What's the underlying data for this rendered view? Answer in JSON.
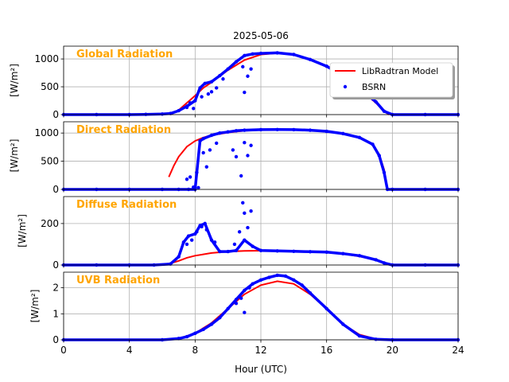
{
  "figure": {
    "title": "2025-05-06",
    "xlabel": "Hour (UTC)",
    "legend": {
      "model_label": "LibRadtran Model",
      "obs_label": "BSRN",
      "placement": "upper-right of first panel"
    },
    "colors": {
      "model": "#ff0000",
      "obs": "#0000ff",
      "panel_title": "#ffa500",
      "grid": "#b0b0b0"
    }
  },
  "chart_data": [
    {
      "type": "line",
      "title": "Global Radiation",
      "ylabel": "[W/m²]",
      "xlim": [
        0,
        24
      ],
      "ylim": [
        0,
        1230
      ],
      "yticks": [
        0,
        500,
        1000
      ],
      "xticks": [
        0,
        4,
        8,
        12,
        16,
        20,
        24
      ],
      "grid": true,
      "series": [
        {
          "name": "LibRadtran Model",
          "style": "line",
          "x": [
            6.5,
            7.0,
            7.5,
            8.0,
            8.5,
            9.0,
            10.0,
            11.0,
            12.0,
            13.0,
            14.0,
            15.0,
            16.0,
            17.0,
            18.0,
            19.0,
            19.5,
            19.8
          ],
          "y": [
            0,
            80,
            210,
            340,
            480,
            580,
            800,
            980,
            1080,
            1105,
            1080,
            990,
            860,
            690,
            460,
            210,
            60,
            0
          ]
        },
        {
          "name": "BSRN",
          "style": "points",
          "x": [
            0,
            2,
            4,
            5,
            6,
            6.5,
            7.0,
            7.5,
            8.0,
            8.3,
            8.6,
            9.0,
            9.5,
            10.0,
            10.5,
            11.0,
            11.5,
            12.0,
            13.0,
            14.0,
            15.0,
            16.0,
            17.0,
            18.0,
            18.5,
            19.0,
            19.5,
            20.0,
            22.0,
            24.0
          ],
          "y": [
            0,
            0,
            0,
            5,
            10,
            20,
            70,
            150,
            250,
            480,
            560,
            590,
            700,
            820,
            950,
            1060,
            1090,
            1100,
            1110,
            1080,
            990,
            870,
            700,
            470,
            350,
            230,
            60,
            0,
            0,
            0
          ]
        },
        {
          "name": "BSRN",
          "style": "points",
          "x": [
            7.5,
            7.7,
            7.9,
            8.4,
            8.8,
            9.0,
            9.3,
            9.7,
            10.9,
            11.0,
            11.2,
            11.4
          ],
          "y": [
            130,
            210,
            110,
            320,
            370,
            410,
            480,
            640,
            860,
            400,
            690,
            820
          ]
        }
      ]
    },
    {
      "type": "line",
      "title": "Direct Radiation",
      "ylabel": "[W/m²]",
      "xlim": [
        0,
        24
      ],
      "ylim": [
        0,
        1200
      ],
      "yticks": [
        0,
        500,
        1000
      ],
      "xticks": [
        0,
        4,
        8,
        12,
        16,
        20,
        24
      ],
      "grid": true,
      "series": [
        {
          "name": "LibRadtran Model",
          "style": "line",
          "x": [
            6.4,
            6.7,
            7.0,
            7.5,
            8.0,
            8.5,
            9.0,
            10.0,
            11.0,
            12.0,
            13.0,
            14.0,
            15.0,
            16.0,
            17.0,
            18.0,
            18.8,
            19.2,
            19.5,
            19.7
          ],
          "y": [
            220,
            420,
            580,
            760,
            860,
            920,
            960,
            1010,
            1040,
            1055,
            1060,
            1058,
            1050,
            1030,
            990,
            920,
            800,
            620,
            350,
            0
          ]
        },
        {
          "name": "BSRN",
          "style": "points",
          "x": [
            0,
            2,
            4,
            6,
            7.0,
            7.6,
            8.0,
            8.3,
            8.5,
            9.0,
            9.5,
            10.0,
            10.5,
            11.0,
            12.0,
            13.0,
            14.0,
            15.0,
            16.0,
            17.0,
            18.0,
            18.8,
            19.2,
            19.5,
            19.7,
            20.0,
            22.0,
            24.0
          ],
          "y": [
            0,
            0,
            0,
            0,
            0,
            0,
            0,
            860,
            900,
            960,
            1000,
            1020,
            1040,
            1050,
            1060,
            1062,
            1060,
            1050,
            1030,
            990,
            920,
            800,
            600,
            300,
            0,
            0,
            0,
            0
          ]
        },
        {
          "name": "BSRN",
          "style": "points",
          "x": [
            7.5,
            7.7,
            7.9,
            8.1,
            8.2,
            8.5,
            8.7,
            8.9,
            9.3,
            10.3,
            10.5,
            10.8,
            11.0,
            11.2,
            11.4
          ],
          "y": [
            180,
            220,
            40,
            300,
            30,
            650,
            400,
            700,
            820,
            700,
            580,
            240,
            830,
            600,
            780
          ]
        }
      ]
    },
    {
      "type": "line",
      "title": "Diffuse Radiation",
      "ylabel": "[W/m²]",
      "xlim": [
        0,
        24
      ],
      "ylim": [
        0,
        330
      ],
      "yticks": [
        0,
        200
      ],
      "xticks": [
        0,
        4,
        8,
        12,
        16,
        20,
        24
      ],
      "grid": true,
      "series": [
        {
          "name": "LibRadtran Model",
          "style": "line",
          "x": [
            0,
            5,
            6,
            6.5,
            7.0,
            7.5,
            8.0,
            9.0,
            10.0,
            11.0,
            12.0,
            13.0,
            14.0,
            15.0,
            16.0,
            17.0,
            18.0,
            19.0,
            19.5,
            20.0,
            24.0
          ],
          "y": [
            0,
            0,
            2,
            8,
            20,
            35,
            45,
            58,
            65,
            68,
            69,
            69,
            68,
            66,
            62,
            54,
            42,
            24,
            10,
            0,
            0
          ]
        },
        {
          "name": "BSRN",
          "style": "points",
          "x": [
            0,
            2,
            4,
            5.5,
            6.5,
            7.0,
            7.3,
            7.6,
            8.0,
            8.3,
            8.6,
            9.0,
            9.5,
            10.0,
            10.5,
            11.0,
            11.5,
            12.0,
            13.0,
            14.0,
            15.0,
            16.0,
            17.0,
            18.0,
            19.0,
            19.5,
            20.0,
            22.0,
            24.0
          ],
          "y": [
            0,
            0,
            0,
            0,
            5,
            40,
            110,
            140,
            150,
            190,
            200,
            120,
            65,
            65,
            70,
            120,
            90,
            70,
            68,
            66,
            64,
            62,
            55,
            45,
            25,
            10,
            0,
            0,
            0
          ]
        },
        {
          "name": "BSRN",
          "style": "points",
          "x": [
            7.5,
            7.8,
            8.1,
            8.4,
            8.7,
            9.2,
            10.4,
            10.7,
            10.9,
            11.0,
            11.2,
            11.4
          ],
          "y": [
            100,
            120,
            160,
            185,
            170,
            110,
            100,
            160,
            300,
            250,
            180,
            260
          ]
        }
      ]
    },
    {
      "type": "line",
      "title": "UVB Radiation",
      "ylabel": "[W/m²]",
      "xlim": [
        0,
        24
      ],
      "ylim": [
        0,
        2.6
      ],
      "yticks": [
        0,
        1,
        2
      ],
      "xticks": [
        0,
        4,
        8,
        12,
        16,
        20,
        24
      ],
      "grid": true,
      "series": [
        {
          "name": "LibRadtran Model",
          "style": "line",
          "x": [
            0,
            6,
            7,
            8,
            9,
            10,
            11,
            12,
            13,
            14,
            15,
            16,
            17,
            18,
            19,
            20,
            24
          ],
          "y": [
            0,
            0,
            0.05,
            0.25,
            0.65,
            1.2,
            1.75,
            2.1,
            2.25,
            2.15,
            1.75,
            1.2,
            0.6,
            0.2,
            0.03,
            0,
            0
          ]
        },
        {
          "name": "BSRN",
          "style": "points",
          "x": [
            0,
            6,
            7,
            7.5,
            8,
            8.5,
            9,
            9.5,
            10,
            10.5,
            11,
            11.5,
            12,
            12.5,
            13,
            13.5,
            14,
            14.5,
            15,
            16,
            17,
            18,
            19,
            20,
            24
          ],
          "y": [
            0,
            0,
            0.05,
            0.12,
            0.25,
            0.4,
            0.6,
            0.85,
            1.2,
            1.55,
            1.9,
            2.15,
            2.3,
            2.4,
            2.48,
            2.45,
            2.3,
            2.1,
            1.8,
            1.2,
            0.6,
            0.15,
            0.02,
            0,
            0
          ]
        },
        {
          "name": "BSRN",
          "style": "points",
          "x": [
            10.5,
            10.8,
            11.0,
            11.3
          ],
          "y": [
            1.4,
            1.6,
            1.05,
            2.0
          ]
        }
      ]
    }
  ]
}
